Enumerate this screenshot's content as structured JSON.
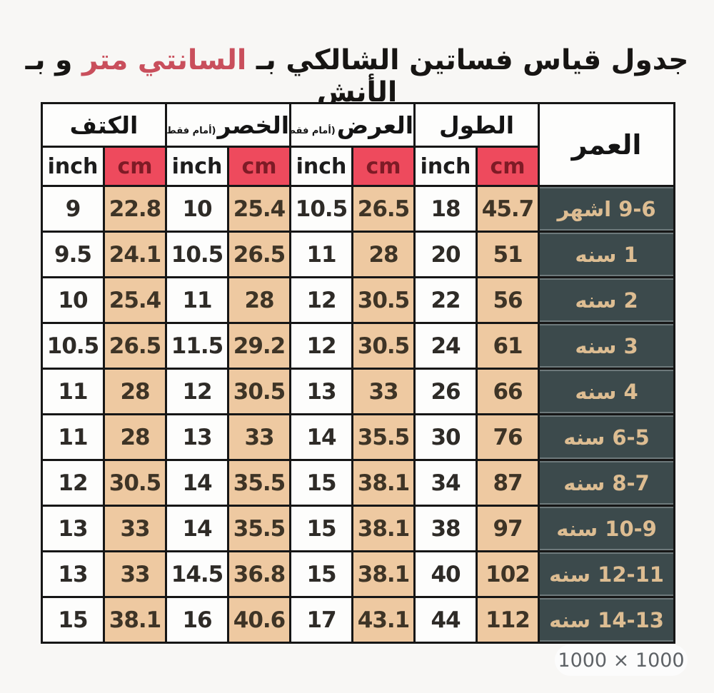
{
  "title": {
    "prefix": "جدول قياس فساتين الشالكي بـ ",
    "highlight": "السانتي متر",
    "suffix": " و بـ الأنش"
  },
  "badge": {
    "dimensions": "1000 × 1000"
  },
  "colors": {
    "title_highlight": "#c94f5c",
    "cm_header_bg": "#ee4a5d",
    "cm_header_text": "#7e1b26",
    "cm_cell_bg": "#eec9a1",
    "age_cell_bg": "#3c4a4c",
    "age_cell_text": "#ddbd92",
    "border": "#161616",
    "page_bg": "#f8f7f5"
  },
  "table": {
    "age_header": "العمر",
    "unit_inch": "inch",
    "unit_cm": "cm",
    "groups": [
      {
        "key": "length",
        "label": "الطول",
        "note": ""
      },
      {
        "key": "width",
        "label": "العرض",
        "note": "(أمام فقط)"
      },
      {
        "key": "waist",
        "label": "الخصر",
        "note": "(أمام فقط)"
      },
      {
        "key": "shoulder",
        "label": "الكتف",
        "note": ""
      }
    ],
    "rows": [
      {
        "age": "9-6 اشهر",
        "length": {
          "inch": "18",
          "cm": "45.7"
        },
        "width": {
          "inch": "10.5",
          "cm": "26.5"
        },
        "waist": {
          "inch": "10",
          "cm": "25.4"
        },
        "shoulder": {
          "inch": "9",
          "cm": "22.8"
        }
      },
      {
        "age": "1 سنه",
        "length": {
          "inch": "20",
          "cm": "51"
        },
        "width": {
          "inch": "11",
          "cm": "28"
        },
        "waist": {
          "inch": "10.5",
          "cm": "26.5"
        },
        "shoulder": {
          "inch": "9.5",
          "cm": "24.1"
        }
      },
      {
        "age": "2 سنه",
        "length": {
          "inch": "22",
          "cm": "56"
        },
        "width": {
          "inch": "12",
          "cm": "30.5"
        },
        "waist": {
          "inch": "11",
          "cm": "28"
        },
        "shoulder": {
          "inch": "10",
          "cm": "25.4"
        }
      },
      {
        "age": "3 سنه",
        "length": {
          "inch": "24",
          "cm": "61"
        },
        "width": {
          "inch": "12",
          "cm": "30.5"
        },
        "waist": {
          "inch": "11.5",
          "cm": "29.2"
        },
        "shoulder": {
          "inch": "10.5",
          "cm": "26.5"
        }
      },
      {
        "age": "4 سنه",
        "length": {
          "inch": "26",
          "cm": "66"
        },
        "width": {
          "inch": "13",
          "cm": "33"
        },
        "waist": {
          "inch": "12",
          "cm": "30.5"
        },
        "shoulder": {
          "inch": "11",
          "cm": "28"
        }
      },
      {
        "age": "6-5 سنه",
        "length": {
          "inch": "30",
          "cm": "76"
        },
        "width": {
          "inch": "14",
          "cm": "35.5"
        },
        "waist": {
          "inch": "13",
          "cm": "33"
        },
        "shoulder": {
          "inch": "11",
          "cm": "28"
        }
      },
      {
        "age": "8-7 سنه",
        "length": {
          "inch": "34",
          "cm": "87"
        },
        "width": {
          "inch": "15",
          "cm": "38.1"
        },
        "waist": {
          "inch": "14",
          "cm": "35.5"
        },
        "shoulder": {
          "inch": "12",
          "cm": "30.5"
        }
      },
      {
        "age": "10-9 سنه",
        "length": {
          "inch": "38",
          "cm": "97"
        },
        "width": {
          "inch": "15",
          "cm": "38.1"
        },
        "waist": {
          "inch": "14",
          "cm": "35.5"
        },
        "shoulder": {
          "inch": "13",
          "cm": "33"
        }
      },
      {
        "age": "12-11 سنه",
        "length": {
          "inch": "40",
          "cm": "102"
        },
        "width": {
          "inch": "15",
          "cm": "38.1"
        },
        "waist": {
          "inch": "14.5",
          "cm": "36.8"
        },
        "shoulder": {
          "inch": "13",
          "cm": "33"
        }
      },
      {
        "age": "14-13 سنه",
        "length": {
          "inch": "44",
          "cm": "112"
        },
        "width": {
          "inch": "17",
          "cm": "43.1"
        },
        "waist": {
          "inch": "16",
          "cm": "40.6"
        },
        "shoulder": {
          "inch": "15",
          "cm": "38.1"
        }
      }
    ]
  }
}
